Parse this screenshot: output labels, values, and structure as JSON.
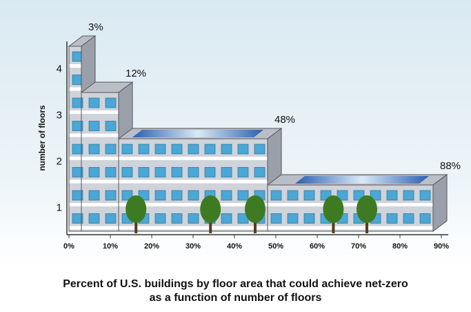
{
  "chart_data": {
    "type": "bar",
    "orientation": "horizontal",
    "title": "Percent of U.S. buildings by floor area that could achieve net-zero as a function of number of floors",
    "y_label": "number of floors",
    "categories": [
      "1",
      "2",
      "3",
      "4"
    ],
    "values": [
      88,
      48,
      12,
      3
    ],
    "value_labels": [
      "88%",
      "48%",
      "12%",
      "3%"
    ],
    "color": "#cfd3da",
    "xlim": [
      0,
      90
    ],
    "xticks": [
      {
        "value": 0,
        "label": "0%"
      },
      {
        "value": 10,
        "label": "10%"
      },
      {
        "value": 20,
        "label": "20%"
      },
      {
        "value": 30,
        "label": "30%"
      },
      {
        "value": 40,
        "label": "40%"
      },
      {
        "value": 50,
        "label": "50%"
      },
      {
        "value": 60,
        "label": "60%"
      },
      {
        "value": 70,
        "label": "70%"
      },
      {
        "value": 80,
        "label": "80%"
      },
      {
        "value": 90,
        "label": "90%"
      }
    ]
  }
}
